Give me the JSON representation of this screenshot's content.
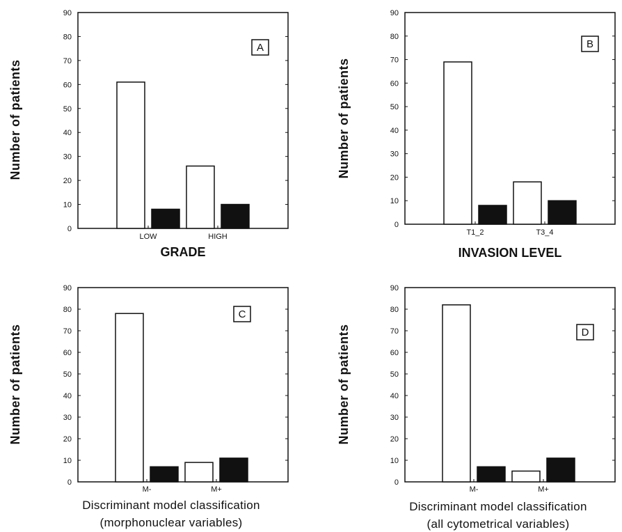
{
  "chart_data": [
    {
      "type": "bar",
      "panel": "A",
      "categories": [
        "LOW",
        "HIGH"
      ],
      "series": [
        {
          "values": [
            61,
            26
          ],
          "color": "#ffffff"
        },
        {
          "values": [
            8,
            10
          ],
          "color": "#111111"
        }
      ],
      "xlabel": "GRADE",
      "ylabel": "Number of patients",
      "ylim": [
        0,
        90
      ],
      "yticks": [
        0,
        10,
        20,
        30,
        40,
        50,
        60,
        70,
        80,
        90
      ]
    },
    {
      "type": "bar",
      "panel": "B",
      "categories": [
        "T1_2",
        "T3_4"
      ],
      "series": [
        {
          "values": [
            69,
            18
          ],
          "color": "#ffffff"
        },
        {
          "values": [
            8,
            10
          ],
          "color": "#111111"
        }
      ],
      "xlabel": "INVASION LEVEL",
      "ylabel": "Number of patients",
      "ylim": [
        0,
        90
      ],
      "yticks": [
        0,
        10,
        20,
        30,
        40,
        50,
        60,
        70,
        80,
        90
      ]
    },
    {
      "type": "bar",
      "panel": "C",
      "categories": [
        "M-",
        "M+"
      ],
      "series": [
        {
          "values": [
            78,
            9
          ],
          "color": "#ffffff"
        },
        {
          "values": [
            7,
            11
          ],
          "color": "#111111"
        }
      ],
      "xlabel": "Discriminant model classification",
      "xlabel2": "(morphonuclear variables)",
      "ylabel": "Number of patients",
      "ylim": [
        0,
        90
      ],
      "yticks": [
        0,
        10,
        20,
        30,
        40,
        50,
        60,
        70,
        80,
        90
      ]
    },
    {
      "type": "bar",
      "panel": "D",
      "categories": [
        "M-",
        "M+"
      ],
      "series": [
        {
          "values": [
            82,
            5
          ],
          "color": "#ffffff"
        },
        {
          "values": [
            7,
            11
          ],
          "color": "#111111"
        }
      ],
      "xlabel": "Discriminant model classification",
      "xlabel2": "(all cytometrical variables)",
      "ylabel": "Number of patients",
      "ylim": [
        0,
        90
      ],
      "yticks": [
        0,
        10,
        20,
        30,
        40,
        50,
        60,
        70,
        80,
        90
      ]
    }
  ]
}
